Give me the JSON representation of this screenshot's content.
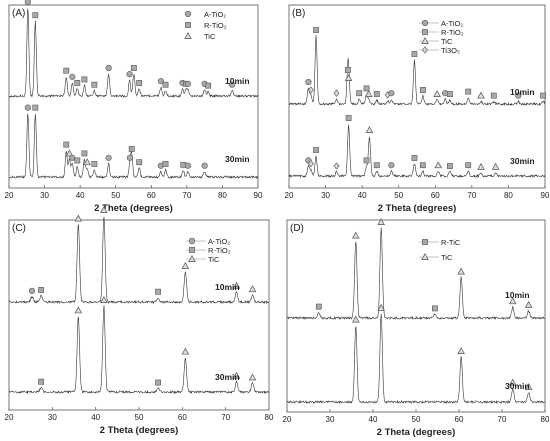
{
  "chart_data": [
    {
      "panel": "(A)",
      "type": "line",
      "xlabel": "2 Theta (degrees)",
      "xlim": [
        20,
        90
      ],
      "xticks": [
        20,
        30,
        40,
        50,
        60,
        70,
        80,
        90
      ],
      "legend": [
        {
          "label": "A-TiO2",
          "marker": "circle",
          "line": "none"
        },
        {
          "label": "R-TiO2",
          "marker": "square",
          "line": "none"
        },
        {
          "label": "TiC",
          "marker": "triangle",
          "line": "none"
        }
      ],
      "series": [
        {
          "name": "10min",
          "peaks": [
            {
              "x": 25.3,
              "h": 1.0,
              "m": "circle"
            },
            {
              "x": 27.4,
              "h": 0.85,
              "m": "square"
            },
            {
              "x": 36.1,
              "h": 0.22,
              "m": "square"
            },
            {
              "x": 37.8,
              "h": 0.15,
              "m": "circle"
            },
            {
              "x": 39.2,
              "h": 0.08,
              "m": "square"
            },
            {
              "x": 41.2,
              "h": 0.12,
              "m": "square"
            },
            {
              "x": 44.0,
              "h": 0.06,
              "m": "square"
            },
            {
              "x": 48.0,
              "h": 0.25,
              "m": "circle"
            },
            {
              "x": 53.9,
              "h": 0.18,
              "m": "circle"
            },
            {
              "x": 55.1,
              "h": 0.25,
              "m": "square"
            },
            {
              "x": 56.6,
              "h": 0.08,
              "m": "square"
            },
            {
              "x": 62.7,
              "h": 0.1,
              "m": "circle"
            },
            {
              "x": 64.0,
              "h": 0.06,
              "m": "square"
            },
            {
              "x": 68.8,
              "h": 0.08,
              "m": "circle"
            },
            {
              "x": 69.8,
              "h": 0.07,
              "m": "square"
            },
            {
              "x": 70.3,
              "h": 0.07,
              "m": "circle"
            },
            {
              "x": 75.0,
              "h": 0.07,
              "m": "circle"
            },
            {
              "x": 76.0,
              "h": 0.05,
              "m": "square"
            },
            {
              "x": 82.7,
              "h": 0.06,
              "m": "circle"
            }
          ]
        },
        {
          "name": "30min",
          "peaks": [
            {
              "x": 25.3,
              "h": 0.72,
              "m": "circle"
            },
            {
              "x": 27.4,
              "h": 0.72,
              "m": "square"
            },
            {
              "x": 36.1,
              "h": 0.3,
              "m": "square"
            },
            {
              "x": 37.0,
              "h": 0.2,
              "m": "triangle"
            },
            {
              "x": 37.8,
              "h": 0.15,
              "m": "circle"
            },
            {
              "x": 39.2,
              "h": 0.12,
              "m": "square"
            },
            {
              "x": 41.2,
              "h": 0.2,
              "m": "square"
            },
            {
              "x": 42.0,
              "h": 0.1,
              "m": "triangle"
            },
            {
              "x": 44.0,
              "h": 0.08,
              "m": "square"
            },
            {
              "x": 48.0,
              "h": 0.15,
              "m": "circle"
            },
            {
              "x": 54.0,
              "h": 0.15,
              "m": "circle"
            },
            {
              "x": 54.5,
              "h": 0.25,
              "m": "square"
            },
            {
              "x": 56.6,
              "h": 0.1,
              "m": "square"
            },
            {
              "x": 62.7,
              "h": 0.06,
              "m": "circle"
            },
            {
              "x": 64.0,
              "h": 0.08,
              "m": "square"
            },
            {
              "x": 69.0,
              "h": 0.07,
              "m": "square"
            },
            {
              "x": 70.3,
              "h": 0.06,
              "m": "circle"
            },
            {
              "x": 75.0,
              "h": 0.06,
              "m": "circle"
            }
          ]
        }
      ]
    },
    {
      "panel": "(B)",
      "type": "line",
      "xlabel": "2 Theta (degrees)",
      "xlim": [
        20,
        90
      ],
      "xticks": [
        20,
        30,
        40,
        50,
        60,
        70,
        80,
        90
      ],
      "legend": [
        {
          "label": "A-TiO2",
          "marker": "circle",
          "line": "dash"
        },
        {
          "label": "R-TiO2",
          "marker": "square",
          "line": "dash"
        },
        {
          "label": "TiC",
          "marker": "triangle",
          "line": "dash"
        },
        {
          "label": "Ti3O5",
          "marker": "diamond",
          "line": "dash"
        }
      ],
      "series": [
        {
          "name": "10min",
          "peaks": [
            {
              "x": 25.3,
              "h": 0.2,
              "m": "circle"
            },
            {
              "x": 26.0,
              "h": 0.1,
              "m": "diamond"
            },
            {
              "x": 27.4,
              "h": 0.85,
              "m": "square"
            },
            {
              "x": 33.0,
              "h": 0.06,
              "m": "diamond"
            },
            {
              "x": 36.1,
              "h": 0.35,
              "m": "square"
            },
            {
              "x": 36.3,
              "h": 0.25,
              "m": "triangle"
            },
            {
              "x": 39.2,
              "h": 0.06,
              "m": "square"
            },
            {
              "x": 41.2,
              "h": 0.12,
              "m": "square"
            },
            {
              "x": 41.8,
              "h": 0.05,
              "m": "triangle"
            },
            {
              "x": 44.0,
              "h": 0.05,
              "m": "square"
            },
            {
              "x": 47.0,
              "h": 0.04,
              "m": "diamond"
            },
            {
              "x": 48.0,
              "h": 0.06,
              "m": "circle"
            },
            {
              "x": 54.3,
              "h": 0.55,
              "m": "square"
            },
            {
              "x": 56.6,
              "h": 0.1,
              "m": "square"
            },
            {
              "x": 60.5,
              "h": 0.05,
              "m": "triangle"
            },
            {
              "x": 62.7,
              "h": 0.06,
              "m": "circle"
            },
            {
              "x": 64.0,
              "h": 0.05,
              "m": "square"
            },
            {
              "x": 69.0,
              "h": 0.08,
              "m": "square"
            },
            {
              "x": 72.5,
              "h": 0.03,
              "m": "triangle"
            },
            {
              "x": 76.0,
              "h": 0.03,
              "m": "square"
            },
            {
              "x": 82.7,
              "h": 0.03,
              "m": "circle"
            },
            {
              "x": 89.5,
              "h": 0.03,
              "m": "square"
            }
          ]
        },
        {
          "name": "30min",
          "peaks": [
            {
              "x": 25.3,
              "h": 0.12,
              "m": "circle"
            },
            {
              "x": 26.0,
              "h": 0.08,
              "m": "diamond"
            },
            {
              "x": 27.4,
              "h": 0.25,
              "m": "square"
            },
            {
              "x": 33.0,
              "h": 0.05,
              "m": "diamond"
            },
            {
              "x": 36.3,
              "h": 0.65,
              "m": "square"
            },
            {
              "x": 41.2,
              "h": 0.12,
              "m": "square"
            },
            {
              "x": 42.0,
              "h": 0.5,
              "m": "triangle"
            },
            {
              "x": 44.0,
              "h": 0.06,
              "m": "square"
            },
            {
              "x": 48.0,
              "h": 0.06,
              "m": "circle"
            },
            {
              "x": 54.3,
              "h": 0.15,
              "m": "square"
            },
            {
              "x": 56.6,
              "h": 0.06,
              "m": "square"
            },
            {
              "x": 60.8,
              "h": 0.06,
              "m": "triangle"
            },
            {
              "x": 64.0,
              "h": 0.05,
              "m": "square"
            },
            {
              "x": 69.0,
              "h": 0.06,
              "m": "square"
            },
            {
              "x": 72.5,
              "h": 0.04,
              "m": "triangle"
            },
            {
              "x": 76.5,
              "h": 0.04,
              "m": "triangle"
            }
          ]
        }
      ]
    },
    {
      "panel": "(C)",
      "type": "line",
      "xlabel": "2 Theta (degrees)",
      "xlim": [
        20,
        80
      ],
      "xticks": [
        20,
        30,
        40,
        50,
        60,
        70,
        80
      ],
      "legend": [
        {
          "label": "A-TiO2",
          "marker": "circle",
          "line": "dash"
        },
        {
          "label": "R-TiO2",
          "marker": "square",
          "line": "dash"
        },
        {
          "label": "TiC",
          "marker": "triangle",
          "line": "dash"
        }
      ],
      "series": [
        {
          "name": "10min",
          "peaks": [
            {
              "x": 25.3,
              "h": 0.06,
              "m": "circle"
            },
            {
              "x": 27.4,
              "h": 0.07,
              "m": "square"
            },
            {
              "x": 36.0,
              "h": 0.9,
              "m": "triangle"
            },
            {
              "x": 41.9,
              "h": 1.0,
              "m": "triangle"
            },
            {
              "x": 54.4,
              "h": 0.05,
              "m": "square"
            },
            {
              "x": 60.7,
              "h": 0.35,
              "m": "triangle"
            },
            {
              "x": 72.5,
              "h": 0.12,
              "m": "triangle"
            },
            {
              "x": 76.2,
              "h": 0.08,
              "m": "triangle"
            }
          ]
        },
        {
          "name": "30min",
          "peaks": [
            {
              "x": 27.4,
              "h": 0.05,
              "m": "square"
            },
            {
              "x": 36.0,
              "h": 0.88,
              "m": "triangle"
            },
            {
              "x": 41.9,
              "h": 1.0,
              "m": "triangle"
            },
            {
              "x": 54.4,
              "h": 0.04,
              "m": "square"
            },
            {
              "x": 60.7,
              "h": 0.4,
              "m": "triangle"
            },
            {
              "x": 72.5,
              "h": 0.12,
              "m": "triangle"
            },
            {
              "x": 76.2,
              "h": 0.1,
              "m": "triangle"
            }
          ]
        }
      ]
    },
    {
      "panel": "(D)",
      "type": "line",
      "xlabel": "2 Theta (degrees)",
      "xlim": [
        20,
        80
      ],
      "xticks": [
        20,
        30,
        40,
        50,
        60,
        70,
        80
      ],
      "legend": [
        {
          "label": "R-TiC",
          "marker": "square",
          "line": "dash"
        },
        {
          "label": "TiC",
          "marker": "triangle",
          "line": "dash"
        }
      ],
      "series": [
        {
          "name": "10min",
          "peaks": [
            {
              "x": 27.4,
              "h": 0.06,
              "m": "square"
            },
            {
              "x": 36.0,
              "h": 0.85,
              "m": "triangle"
            },
            {
              "x": 41.9,
              "h": 1.0,
              "m": "triangle"
            },
            {
              "x": 54.4,
              "h": 0.04,
              "m": "square"
            },
            {
              "x": 60.5,
              "h": 0.45,
              "m": "triangle"
            },
            {
              "x": 72.5,
              "h": 0.12,
              "m": "triangle"
            },
            {
              "x": 76.2,
              "h": 0.08,
              "m": "triangle"
            }
          ]
        },
        {
          "name": "30min",
          "peaks": [
            {
              "x": 36.0,
              "h": 0.85,
              "m": "triangle"
            },
            {
              "x": 41.9,
              "h": 0.98,
              "m": "triangle"
            },
            {
              "x": 60.5,
              "h": 0.5,
              "m": "triangle"
            },
            {
              "x": 72.5,
              "h": 0.15,
              "m": "triangle"
            },
            {
              "x": 76.2,
              "h": 0.1,
              "m": "triangle"
            }
          ]
        }
      ]
    }
  ]
}
